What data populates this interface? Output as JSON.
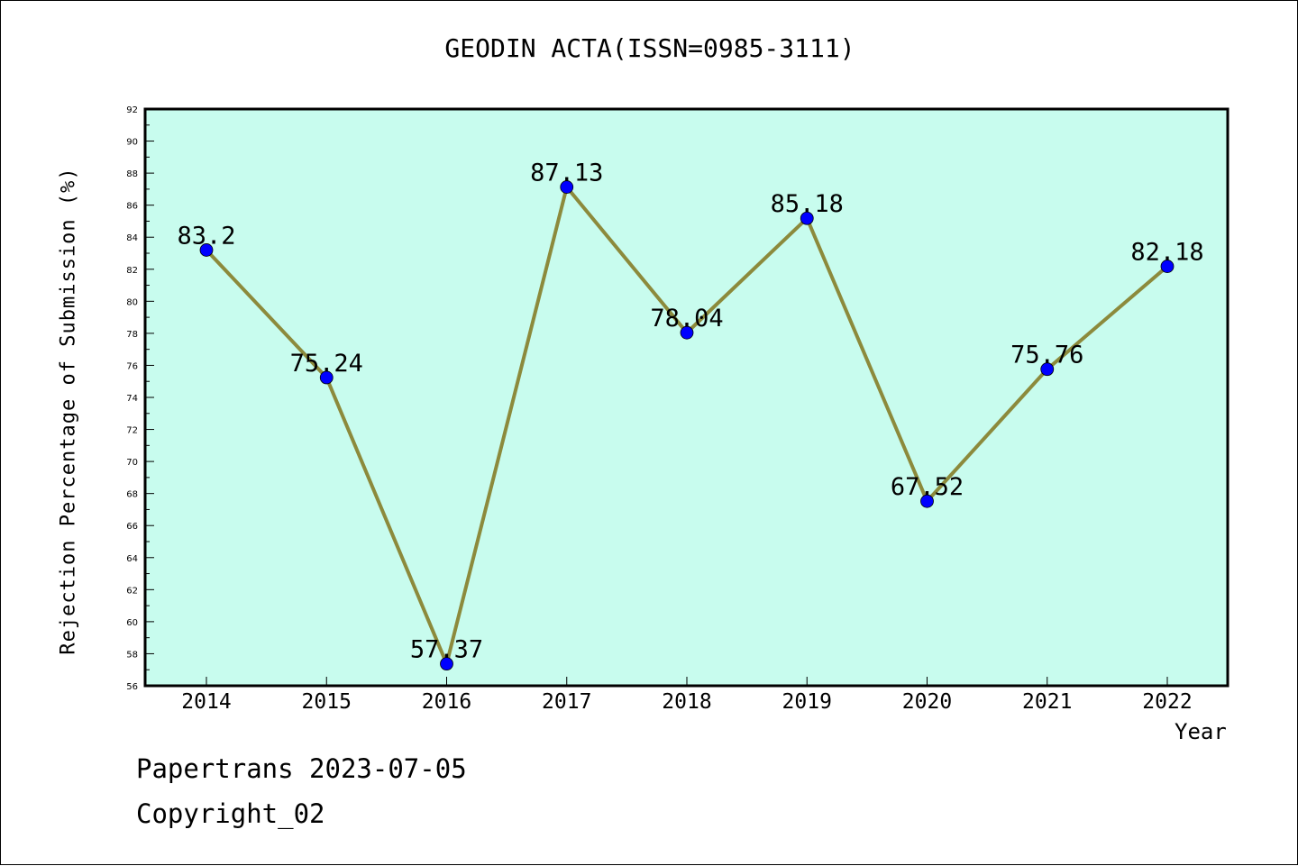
{
  "chart_data": {
    "type": "line",
    "title": "GEODIN ACTA(ISSN=0985-3111)",
    "xlabel": "Year",
    "ylabel": "Rejection Percentage of Submission (%)",
    "categories": [
      "2014",
      "2015",
      "2016",
      "2017",
      "2018",
      "2019",
      "2020",
      "2021",
      "2022"
    ],
    "series": [
      {
        "values": [
          83.2,
          75.24,
          57.37,
          87.13,
          78.04,
          85.18,
          67.52,
          75.76,
          82.18
        ],
        "data_labels": [
          "83.2",
          "75.24",
          "57.37",
          "87.13",
          "78.04",
          "85.18",
          "67.52",
          "75.76",
          "82.18"
        ]
      }
    ],
    "ylim": [
      56,
      92
    ],
    "yticks": [
      "56",
      "58",
      "60",
      "62",
      "64",
      "66",
      "68",
      "70",
      "72",
      "74",
      "76",
      "78",
      "80",
      "82",
      "84",
      "86",
      "88",
      "90",
      "92"
    ],
    "grid": false,
    "colors": {
      "plot_background": "#c8fcee",
      "line": "#8c8a3c",
      "marker": "#0000ff"
    }
  },
  "footer": {
    "line1": "Papertrans 2023-07-05",
    "line2": "Copyright_02"
  }
}
